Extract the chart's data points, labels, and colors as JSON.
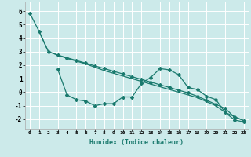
{
  "xlabel": "Humidex (Indice chaleur)",
  "bg_color": "#cceaea",
  "grid_color": "#ffffff",
  "line_color": "#1a7a6e",
  "xlim": [
    -0.5,
    23.5
  ],
  "ylim": [
    -2.7,
    6.7
  ],
  "xticks": [
    0,
    1,
    2,
    3,
    4,
    5,
    6,
    7,
    8,
    9,
    10,
    11,
    12,
    13,
    14,
    15,
    16,
    17,
    18,
    19,
    20,
    21,
    22,
    23
  ],
  "yticks": [
    -2,
    -1,
    0,
    1,
    2,
    3,
    4,
    5,
    6
  ],
  "line1_x": [
    0,
    1,
    2,
    3,
    4,
    5,
    6,
    7,
    8,
    9,
    10,
    11,
    12,
    13,
    14,
    15,
    16,
    17,
    18,
    19,
    20,
    21,
    22,
    23
  ],
  "line1_y": [
    5.85,
    4.5,
    3.0,
    2.75,
    2.55,
    2.35,
    2.15,
    1.95,
    1.75,
    1.55,
    1.35,
    1.15,
    0.95,
    0.75,
    0.55,
    0.35,
    0.15,
    -0.05,
    -0.3,
    -0.6,
    -0.9,
    -1.2,
    -1.85,
    -2.1
  ],
  "line2_x": [
    3,
    4,
    5,
    6,
    7,
    8,
    9,
    10,
    11,
    12,
    13,
    14,
    15,
    16,
    17,
    18,
    19,
    20,
    21,
    22,
    23
  ],
  "line2_y": [
    1.7,
    -0.2,
    -0.55,
    -0.65,
    -1.0,
    -0.85,
    -0.85,
    -0.35,
    -0.35,
    0.65,
    1.1,
    1.75,
    1.65,
    1.3,
    0.35,
    0.2,
    -0.3,
    -0.55,
    -1.5,
    -2.05,
    -2.2
  ],
  "line3_x": [
    1,
    2,
    3,
    4,
    5,
    6,
    7,
    8,
    9,
    10,
    11,
    12,
    13,
    14,
    15,
    16,
    17,
    18,
    19,
    20,
    21,
    22,
    23
  ],
  "line3_y": [
    4.5,
    3.0,
    2.75,
    2.5,
    2.3,
    2.1,
    1.85,
    1.6,
    1.4,
    1.2,
    1.0,
    0.8,
    0.6,
    0.4,
    0.2,
    0.0,
    -0.2,
    -0.4,
    -0.7,
    -1.0,
    -1.5,
    -1.8,
    -2.1
  ]
}
